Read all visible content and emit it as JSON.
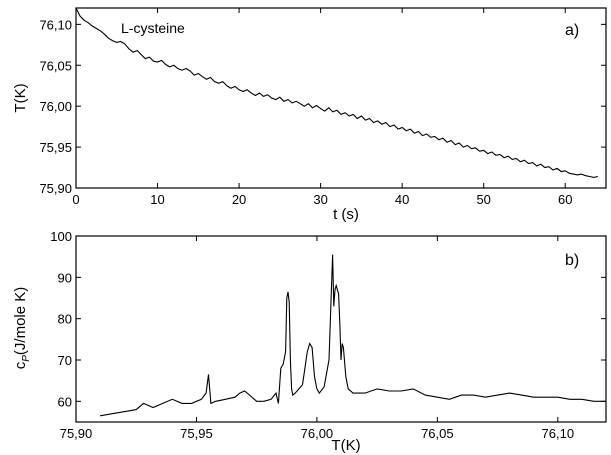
{
  "chart_data": [
    {
      "type": "line",
      "panel_label": "a)",
      "annotation": "L-cysteine",
      "xlabel": "t (s)",
      "ylabel": "T(K)",
      "xlim": [
        0,
        65
      ],
      "ylim": [
        75.9,
        76.12
      ],
      "xticks": [
        0,
        10,
        20,
        30,
        40,
        50,
        60
      ],
      "xtick_labels": [
        "0",
        "10",
        "20",
        "30",
        "40",
        "50",
        "60"
      ],
      "yticks": [
        75.9,
        75.95,
        76.0,
        76.05,
        76.1
      ],
      "ytick_labels": [
        "75,90",
        "75,95",
        "76,00",
        "76,05",
        "76,10"
      ],
      "grid": false,
      "series": [
        {
          "x": [
            0,
            0.5,
            1,
            1.5,
            2,
            2.5,
            3,
            3.5,
            4,
            4.5,
            5,
            5.5,
            6,
            6.5,
            7,
            7.5,
            8,
            8.5,
            9,
            9.5,
            10,
            10.5,
            11,
            11.5,
            12,
            12.5,
            13,
            13.5,
            14,
            14.5,
            15,
            15.5,
            16,
            16.5,
            17,
            17.5,
            18,
            18.5,
            19,
            19.5,
            20,
            20.5,
            21,
            21.5,
            22,
            22.5,
            23,
            23.5,
            24,
            24.5,
            25,
            25.5,
            26,
            26.5,
            27,
            27.5,
            28,
            28.5,
            29,
            29.5,
            30,
            30.5,
            31,
            31.5,
            32,
            32.5,
            33,
            33.5,
            34,
            34.5,
            35,
            35.5,
            36,
            36.5,
            37,
            37.5,
            38,
            38.5,
            39,
            39.5,
            40,
            40.5,
            41,
            41.5,
            42,
            42.5,
            43,
            43.5,
            44,
            44.5,
            45,
            45.5,
            46,
            46.5,
            47,
            47.5,
            48,
            48.5,
            49,
            49.5,
            50,
            50.5,
            51,
            51.5,
            52,
            52.5,
            53,
            53.5,
            54,
            54.5,
            55,
            55.5,
            56,
            56.5,
            57,
            57.5,
            58,
            58.5,
            59,
            59.5,
            60,
            60.5,
            61,
            61.5,
            62,
            62.5,
            63,
            63.5,
            64
          ],
          "y": [
            76.12,
            76.11,
            76.105,
            76.102,
            76.098,
            76.095,
            76.092,
            76.088,
            76.083,
            76.08,
            76.078,
            76.079,
            76.076,
            76.07,
            76.066,
            76.068,
            76.063,
            76.058,
            76.06,
            76.055,
            76.054,
            76.056,
            76.051,
            76.048,
            76.05,
            76.046,
            76.044,
            76.046,
            76.043,
            76.038,
            76.04,
            76.036,
            76.033,
            76.035,
            76.03,
            76.028,
            76.03,
            76.025,
            76.022,
            76.024,
            76.02,
            76.018,
            76.02,
            76.016,
            76.013,
            76.016,
            76.012,
            76.014,
            76.01,
            76.008,
            76.011,
            76.006,
            76.008,
            76.004,
            76.006,
            76.003,
            76.0,
            76.003,
            75.998,
            76.001,
            75.997,
            75.994,
            75.998,
            75.993,
            75.995,
            75.99,
            75.992,
            75.988,
            75.99,
            75.985,
            75.988,
            75.983,
            75.985,
            75.98,
            75.982,
            75.978,
            75.98,
            75.975,
            75.977,
            75.972,
            75.974,
            75.97,
            75.972,
            75.967,
            75.969,
            75.964,
            75.966,
            75.962,
            75.963,
            75.959,
            75.961,
            75.956,
            75.958,
            75.953,
            75.955,
            75.95,
            75.952,
            75.948,
            75.949,
            75.945,
            75.946,
            75.942,
            75.944,
            75.94,
            75.941,
            75.937,
            75.939,
            75.935,
            75.936,
            75.932,
            75.934,
            75.93,
            75.931,
            75.927,
            75.929,
            75.925,
            75.926,
            75.922,
            75.924,
            75.92,
            75.921,
            75.918,
            75.917,
            75.916,
            75.917,
            75.915,
            75.914,
            75.913,
            75.914
          ]
        }
      ]
    },
    {
      "type": "line",
      "panel_label": "b)",
      "xlabel": "T(K)",
      "ylabel": "c_P(J/mole K)",
      "ylabel_main": "c",
      "ylabel_sub": "P",
      "ylabel_rest": "(J/mole K)",
      "xlim": [
        75.9,
        76.12
      ],
      "ylim": [
        55,
        100
      ],
      "xticks": [
        75.9,
        75.95,
        76.0,
        76.05,
        76.1
      ],
      "xtick_labels": [
        "75,90",
        "75,95",
        "76,00",
        "76,05",
        "76,10"
      ],
      "yticks": [
        60,
        70,
        80,
        90,
        100
      ],
      "ytick_labels": [
        "60",
        "70",
        "80",
        "90",
        "100"
      ],
      "grid": false,
      "series": [
        {
          "x": [
            75.91,
            75.915,
            75.92,
            75.925,
            75.928,
            75.932,
            75.936,
            75.94,
            75.944,
            75.948,
            75.952,
            75.954,
            75.955,
            75.9555,
            75.956,
            75.958,
            75.962,
            75.966,
            75.968,
            75.97,
            75.972,
            75.975,
            75.978,
            75.981,
            75.983,
            75.984,
            75.985,
            75.986,
            75.987,
            75.9875,
            75.988,
            75.9885,
            75.989,
            75.9895,
            75.99,
            75.991,
            75.994,
            75.996,
            75.997,
            75.998,
            75.999,
            76.0,
            76.001,
            76.003,
            76.005,
            76.006,
            76.0065,
            76.007,
            76.0075,
            76.008,
            76.009,
            76.0095,
            76.01,
            76.0105,
            76.011,
            76.012,
            76.013,
            76.015,
            76.02,
            76.025,
            76.03,
            76.035,
            76.04,
            76.045,
            76.05,
            76.055,
            76.06,
            76.065,
            76.07,
            76.075,
            76.08,
            76.085,
            76.09,
            76.095,
            76.1,
            76.105,
            76.11,
            76.115,
            76.12
          ],
          "y": [
            56.5,
            57,
            57.5,
            58,
            59.5,
            58.5,
            59.5,
            60.5,
            59.5,
            59.5,
            60.5,
            62,
            66.5,
            63,
            59.5,
            60,
            60.5,
            61,
            62,
            62.5,
            61.5,
            60,
            60,
            60.5,
            62,
            59.5,
            68,
            69,
            72,
            85,
            86.5,
            84,
            70,
            63,
            61.5,
            62,
            64,
            72,
            74,
            73,
            66,
            63,
            62,
            63.5,
            70,
            87,
            95.5,
            83,
            87,
            88,
            86,
            79,
            70,
            74,
            73,
            66,
            63,
            62,
            62,
            63,
            62.5,
            62.5,
            63,
            61.5,
            61,
            60.5,
            61.5,
            61.5,
            61,
            61.5,
            62,
            61.5,
            61,
            61,
            61,
            60.5,
            60.5,
            60,
            60
          ]
        }
      ]
    }
  ]
}
